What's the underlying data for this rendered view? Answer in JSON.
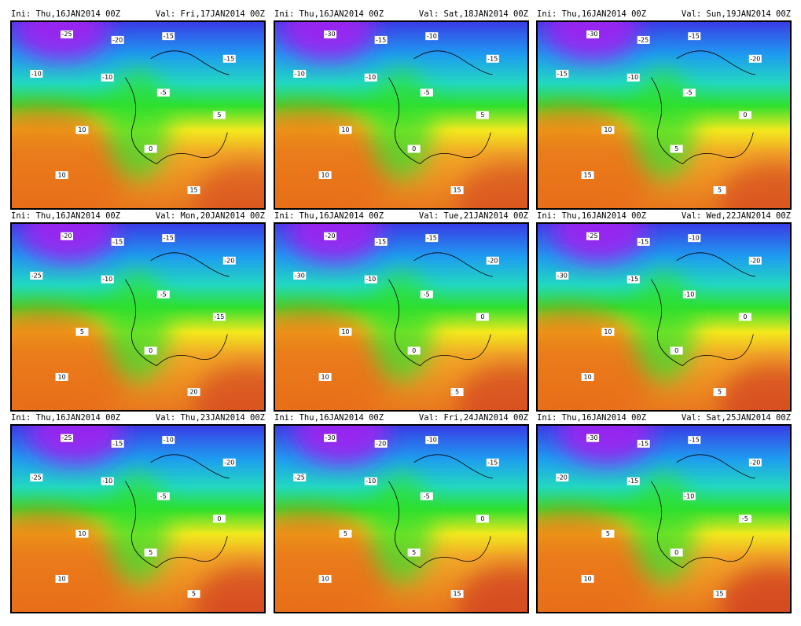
{
  "panels": [
    {
      "ini": "Ini: Thu,16JAN2014 00Z",
      "val": "Val: Fri,17JAN2014 00Z",
      "labels": [
        "-25",
        "-20",
        "-15",
        "-15",
        "-10",
        "-10",
        "-5",
        "5",
        "10",
        "0",
        "10",
        "15"
      ]
    },
    {
      "ini": "Ini: Thu,16JAN2014 00Z",
      "val": "Val: Sat,18JAN2014 00Z",
      "labels": [
        "-30",
        "-15",
        "-10",
        "-15",
        "-10",
        "-10",
        "-5",
        "5",
        "10",
        "0",
        "10",
        "15"
      ]
    },
    {
      "ini": "Ini: Thu,16JAN2014 00Z",
      "val": "Val: Sun,19JAN2014 00Z",
      "labels": [
        "-30",
        "-25",
        "-15",
        "-20",
        "-15",
        "-10",
        "-5",
        "0",
        "10",
        "5",
        "15",
        "5"
      ]
    },
    {
      "ini": "Ini: Thu,16JAN2014 00Z",
      "val": "Val: Mon,20JAN2014 00Z",
      "labels": [
        "-20",
        "-15",
        "-15",
        "-20",
        "-25",
        "-10",
        "-5",
        "-15",
        "5",
        "0",
        "10",
        "20"
      ]
    },
    {
      "ini": "Ini: Thu,16JAN2014 00Z",
      "val": "Val: Tue,21JAN2014 00Z",
      "labels": [
        "-20",
        "-15",
        "-15",
        "-20",
        "-30",
        "-10",
        "-5",
        "0",
        "10",
        "0",
        "10",
        "5"
      ]
    },
    {
      "ini": "Ini: Thu,16JAN2014 00Z",
      "val": "Val: Wed,22JAN2014 00Z",
      "labels": [
        "-25",
        "-15",
        "-10",
        "-20",
        "-30",
        "-15",
        "-10",
        "0",
        "10",
        "0",
        "10",
        "5"
      ]
    },
    {
      "ini": "Ini: Thu,16JAN2014 00Z",
      "val": "Val: Thu,23JAN2014 00Z",
      "labels": [
        "-25",
        "-15",
        "-10",
        "-20",
        "-25",
        "-10",
        "-5",
        "0",
        "10",
        "5",
        "10",
        "5"
      ]
    },
    {
      "ini": "Ini: Thu,16JAN2014 00Z",
      "val": "Val: Fri,24JAN2014 00Z",
      "labels": [
        "-30",
        "-20",
        "-10",
        "-15",
        "-25",
        "-10",
        "-5",
        "0",
        "5",
        "5",
        "10",
        "15"
      ]
    },
    {
      "ini": "Ini: Thu,16JAN2014 00Z",
      "val": "Val: Sat,25JAN2014 00Z",
      "labels": [
        "-30",
        "-15",
        "-15",
        "-20",
        "-20",
        "-15",
        "-10",
        "-5",
        "5",
        "0",
        "10",
        "15"
      ]
    }
  ]
}
